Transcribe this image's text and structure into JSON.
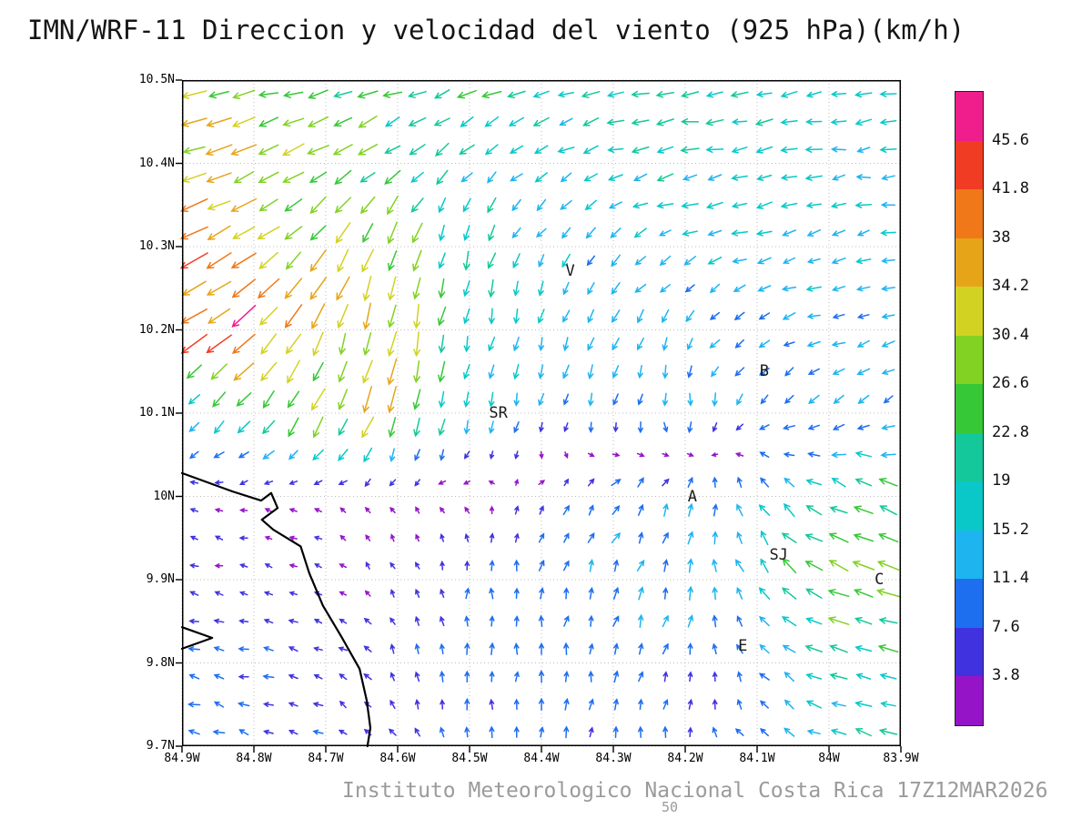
{
  "title": "IMN/WRF-11 Direccion y velocidad del viento (925 hPa)(km/h)",
  "caption": "Instituto Meteorologico Nacional Costa Rica 17Z12MAR2026",
  "footnote": "50",
  "chart_data": {
    "type": "quiver",
    "title": "IMN/WRF-11 Direccion y velocidad del viento (925 hPa)(km/h)",
    "units": "km/h",
    "pressure_level": "925 hPa",
    "valid_time": "17Z12MAR2026",
    "x_axis": {
      "range": [
        -84.9,
        -83.9
      ],
      "ticks": [
        {
          "value": -84.9,
          "label": "84.9W"
        },
        {
          "value": -84.8,
          "label": "84.8W"
        },
        {
          "value": -84.7,
          "label": "84.7W"
        },
        {
          "value": -84.6,
          "label": "84.6W"
        },
        {
          "value": -84.5,
          "label": "84.5W"
        },
        {
          "value": -84.4,
          "label": "84.4W"
        },
        {
          "value": -84.3,
          "label": "84.3W"
        },
        {
          "value": -84.2,
          "label": "84.2W"
        },
        {
          "value": -84.1,
          "label": "84.1W"
        },
        {
          "value": -84.0,
          "label": "84W"
        },
        {
          "value": -83.9,
          "label": "83.9W"
        }
      ]
    },
    "y_axis": {
      "range": [
        9.7,
        10.5
      ],
      "ticks": [
        {
          "value": 10.5,
          "label": "10.5N"
        },
        {
          "value": 10.4,
          "label": "10.4N"
        },
        {
          "value": 10.3,
          "label": "10.3N"
        },
        {
          "value": 10.2,
          "label": "10.2N"
        },
        {
          "value": 10.1,
          "label": "10.1N"
        },
        {
          "value": 10.0,
          "label": "10N"
        },
        {
          "value": 9.9,
          "label": "9.9N"
        },
        {
          "value": 9.8,
          "label": "9.8N"
        },
        {
          "value": 9.7,
          "label": "9.7N"
        }
      ]
    },
    "colorbar": {
      "levels": [
        3.8,
        7.6,
        11.4,
        15.2,
        19,
        22.8,
        26.6,
        30.4,
        34.2,
        38,
        41.8,
        45.6
      ],
      "labels": [
        "45.6",
        "41.8",
        "38",
        "34.2",
        "30.4",
        "26.6",
        "22.8",
        "19",
        "15.2",
        "11.4",
        "7.6",
        "3.8"
      ],
      "colors_low_to_high": [
        "#9614c8",
        "#4132e0",
        "#1e6ef0",
        "#1eb4f0",
        "#0ac8c8",
        "#14c89b",
        "#37c837",
        "#82d223",
        "#d2d223",
        "#e6a519",
        "#f07819",
        "#f03c23",
        "#f01e8c"
      ]
    },
    "stations": [
      {
        "label": "V",
        "lon": -84.36,
        "lat": 10.27
      },
      {
        "label": "B",
        "lon": -84.09,
        "lat": 10.15
      },
      {
        "label": "SR",
        "lon": -84.46,
        "lat": 10.1
      },
      {
        "label": "A",
        "lon": -84.19,
        "lat": 10.0
      },
      {
        "label": "SJ",
        "lon": -84.07,
        "lat": 9.93
      },
      {
        "label": "C",
        "lon": -83.93,
        "lat": 9.9
      },
      {
        "label": "E",
        "lon": -84.12,
        "lat": 9.82
      }
    ],
    "wind_grid": {
      "note": "u=eastward, v=northward wind components in km/h; rows ordered north to south",
      "lons": [
        -84.9,
        -84.8,
        -84.7,
        -84.6,
        -84.5,
        -84.4,
        -84.3,
        -84.2,
        -84.1,
        -84.0,
        -83.9
      ],
      "lats": [
        10.5,
        10.4,
        10.3,
        10.2,
        10.1,
        10.0,
        9.9,
        9.8,
        9.7
      ],
      "u": [
        [
          -28,
          -26,
          -24,
          -22,
          -21,
          -20,
          -19,
          -19,
          -18,
          -17,
          -16
        ],
        [
          -33,
          -30,
          -24,
          -16,
          -12,
          -14,
          -16,
          -18,
          -17,
          -16,
          -15
        ],
        [
          -36,
          -30,
          -18,
          -8,
          -5,
          -7,
          -10,
          -13,
          -15,
          -14,
          -13
        ],
        [
          -38,
          -30,
          -12,
          -5,
          -3,
          -4,
          -6,
          -7,
          -10,
          -12,
          -11
        ],
        [
          -10,
          -14,
          -14,
          -10,
          -4,
          -3,
          -1,
          0,
          -6,
          -10,
          -11
        ],
        [
          -4,
          -3,
          -3,
          -2,
          -2,
          3,
          7,
          5,
          -6,
          -18,
          -22
        ],
        [
          -5,
          -4,
          -3,
          -2,
          0,
          2,
          4,
          4,
          -9,
          -26,
          -26
        ],
        [
          -9,
          -8,
          -6,
          -3,
          -1,
          1,
          2,
          2,
          -5,
          -17,
          -21
        ],
        [
          -9,
          -8,
          -6,
          -3,
          -2,
          0,
          1,
          0,
          -7,
          -15,
          -17
        ]
      ],
      "v": [
        [
          -6,
          -5,
          -5,
          -6,
          -6,
          -5,
          -4,
          -3,
          -2,
          -2,
          -2
        ],
        [
          -12,
          -12,
          -13,
          -14,
          -12,
          -8,
          -5,
          -3,
          -3,
          -2,
          -2
        ],
        [
          -17,
          -20,
          -24,
          -26,
          -18,
          -12,
          -8,
          -5,
          -4,
          -3,
          -3
        ],
        [
          -22,
          -30,
          -30,
          -30,
          -20,
          -14,
          -16,
          -10,
          -5,
          -4,
          -4
        ],
        [
          -6,
          -18,
          -28,
          -30,
          -14,
          -10,
          -10,
          -14,
          -8,
          -6,
          -5
        ],
        [
          1,
          1,
          1,
          2,
          2,
          5,
          9,
          11,
          12,
          10,
          7
        ],
        [
          1,
          1,
          2,
          4,
          8,
          10,
          11,
          12,
          14,
          12,
          6
        ],
        [
          2,
          2,
          2,
          6,
          9,
          10,
          9,
          8,
          7,
          6,
          3
        ],
        [
          3,
          3,
          3,
          5,
          8,
          9,
          8,
          8,
          7,
          6,
          5
        ]
      ]
    },
    "coastline": [
      [
        [
          -84.9,
          10.028
        ],
        [
          -84.83,
          10.006
        ],
        [
          -84.79,
          9.995
        ],
        [
          -84.776,
          10.004
        ],
        [
          -84.767,
          9.986
        ],
        [
          -84.789,
          9.972
        ],
        [
          -84.773,
          9.96
        ],
        [
          -84.735,
          9.94
        ],
        [
          -84.723,
          9.908
        ],
        [
          -84.704,
          9.869
        ],
        [
          -84.678,
          9.831
        ],
        [
          -84.653,
          9.793
        ],
        [
          -84.643,
          9.755
        ],
        [
          -84.638,
          9.722
        ],
        [
          -84.642,
          9.7
        ]
      ],
      [
        [
          -84.9,
          9.843
        ],
        [
          -84.858,
          9.83
        ],
        [
          -84.9,
          9.817
        ]
      ]
    ]
  }
}
